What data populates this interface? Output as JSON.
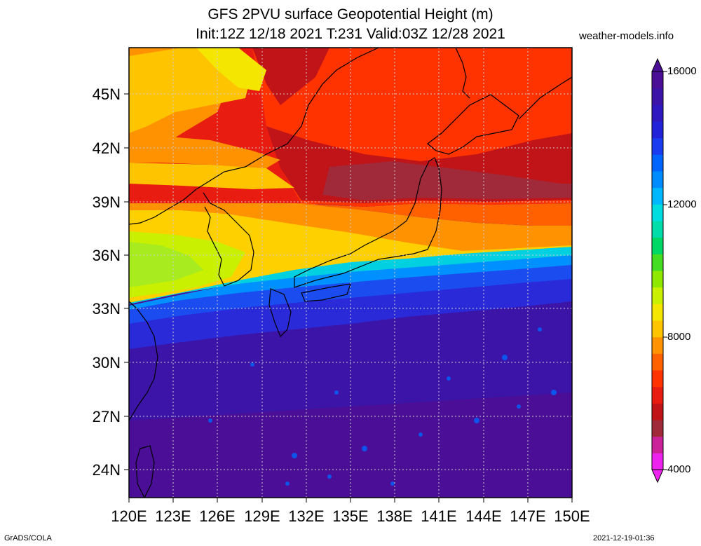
{
  "header": {
    "title_line1": "GFS 2PVU surface Geopotential Height (m)",
    "title_line2": "Init:12Z 12/18 2021 T:231 Valid:03Z 12/28 2021",
    "site": "weather-models.info"
  },
  "map": {
    "lon_labels": [
      "120E",
      "123E",
      "126E",
      "129E",
      "132E",
      "135E",
      "138E",
      "141E",
      "144E",
      "147E",
      "150E"
    ],
    "lat_labels": [
      "45N",
      "42N",
      "39N",
      "36N",
      "33N",
      "30N",
      "27N",
      "24N"
    ]
  },
  "colorbar": {
    "labels": [
      "16000",
      "12000",
      "8000",
      "4000"
    ],
    "colors": [
      "#ee22ee",
      "#cc2299",
      "#a02a3a",
      "#c01418",
      "#e81c10",
      "#ff3300",
      "#ff6000",
      "#ff9200",
      "#ffc400",
      "#f5e600",
      "#c8f000",
      "#8ee800",
      "#44dd22",
      "#00d866",
      "#00ddaa",
      "#00dde0",
      "#00b8ff",
      "#008cff",
      "#0064ff",
      "#1a3cf0",
      "#2222d8",
      "#3018c0",
      "#3c14a8",
      "#4a0f96"
    ]
  },
  "footer": {
    "left": "GrADS/COLA",
    "right": "2021-12-19-01:36"
  }
}
